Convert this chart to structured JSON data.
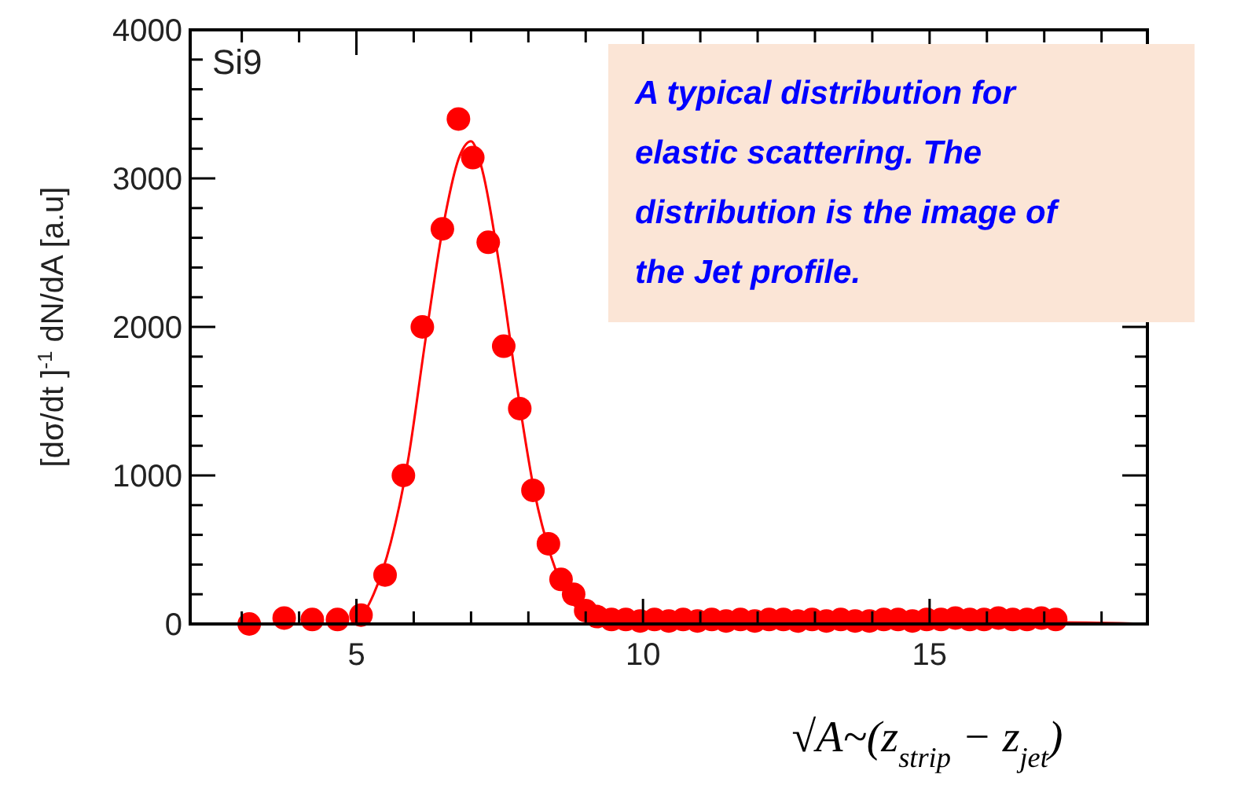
{
  "chart_data": {
    "type": "scatter",
    "xlabel": "√A~(z$_{strip}$ − z$_{jet}$)",
    "ylabel": "[dσ/dt ]$^{-1}$ dN/dA  [a.u]",
    "annotations": [
      "Si9",
      "A typical distribution for elastic scattering. The distribution is the image of the Jet profile."
    ],
    "xlim": [
      2.1,
      18.8
    ],
    "xticks": [
      {
        "value": 3,
        "label": null
      },
      {
        "value": 4,
        "label": null
      },
      5,
      {
        "value": 6,
        "label": null
      },
      {
        "value": 7,
        "label": null
      },
      {
        "value": 8,
        "label": null
      },
      {
        "value": 9,
        "label": null
      },
      10,
      {
        "value": 11,
        "label": null
      },
      {
        "value": 12,
        "label": null
      },
      {
        "value": 13,
        "label": null
      },
      {
        "value": 14,
        "label": null
      },
      15,
      {
        "value": 16,
        "label": null
      },
      {
        "value": 17,
        "label": null
      },
      {
        "value": 18,
        "label": null
      }
    ],
    "ylim": [
      0,
      4000
    ],
    "yticks": [
      0,
      {
        "value": 200,
        "label": null
      },
      {
        "value": 400,
        "label": null
      },
      {
        "value": 600,
        "label": null
      },
      {
        "value": 800,
        "label": null
      },
      1000,
      {
        "value": 1200,
        "label": null
      },
      {
        "value": 1400,
        "label": null
      },
      {
        "value": 1600,
        "label": null
      },
      {
        "value": 1800,
        "label": null
      },
      2000,
      {
        "value": 2200,
        "label": null
      },
      {
        "value": 2400,
        "label": null
      },
      {
        "value": 2600,
        "label": null
      },
      {
        "value": 2800,
        "label": null
      },
      3000,
      {
        "value": 3200,
        "label": null
      },
      {
        "value": 3400,
        "label": null
      },
      {
        "value": 3600,
        "label": null
      },
      {
        "value": 3800,
        "label": null
      },
      4000
    ],
    "grid": false,
    "series": [
      {
        "type": "line",
        "color": "#ff0000",
        "marker": "none",
        "x": [
          3,
          4,
          4.8,
          5.0,
          5.3,
          5.6,
          5.9,
          6.2,
          6.5,
          6.8,
          7.0,
          7.2,
          7.5,
          7.8,
          8.1,
          8.4,
          8.7,
          9.0,
          9.3,
          9.6,
          10,
          12,
          14,
          16,
          17.3,
          18.8
        ],
        "values": [
          0,
          0,
          0,
          20,
          200,
          550,
          1100,
          1900,
          2650,
          3150,
          3250,
          3050,
          2400,
          1600,
          900,
          450,
          180,
          60,
          20,
          10,
          10,
          10,
          10,
          10,
          10,
          0
        ]
      },
      {
        "color": "#ff0000",
        "marker": "circle",
        "x": [
          3.13,
          3.74,
          4.23,
          4.67,
          5.08,
          5.5,
          5.82,
          6.15,
          6.5,
          6.78,
          7.03,
          7.3,
          7.57,
          7.85,
          8.08,
          8.35,
          8.57,
          8.79,
          9.0,
          9.2,
          9.45,
          9.7,
          9.95,
          10.2,
          10.45,
          10.7,
          10.95,
          11.2,
          11.45,
          11.7,
          11.95,
          12.2,
          12.45,
          12.7,
          12.95,
          13.2,
          13.45,
          13.7,
          13.95,
          14.2,
          14.45,
          14.7,
          14.95,
          15.2,
          15.45,
          15.7,
          15.95,
          16.2,
          16.45,
          16.7,
          16.95,
          17.2
        ],
        "values": [
          0,
          40,
          30,
          30,
          60,
          330,
          1000,
          2000,
          2660,
          3400,
          3140,
          2570,
          1870,
          1450,
          900,
          540,
          300,
          200,
          90,
          50,
          30,
          30,
          20,
          30,
          20,
          30,
          20,
          30,
          20,
          30,
          20,
          30,
          30,
          20,
          30,
          20,
          30,
          20,
          20,
          30,
          30,
          20,
          30,
          30,
          40,
          30,
          30,
          40,
          30,
          30,
          40,
          30
        ]
      }
    ]
  }
}
